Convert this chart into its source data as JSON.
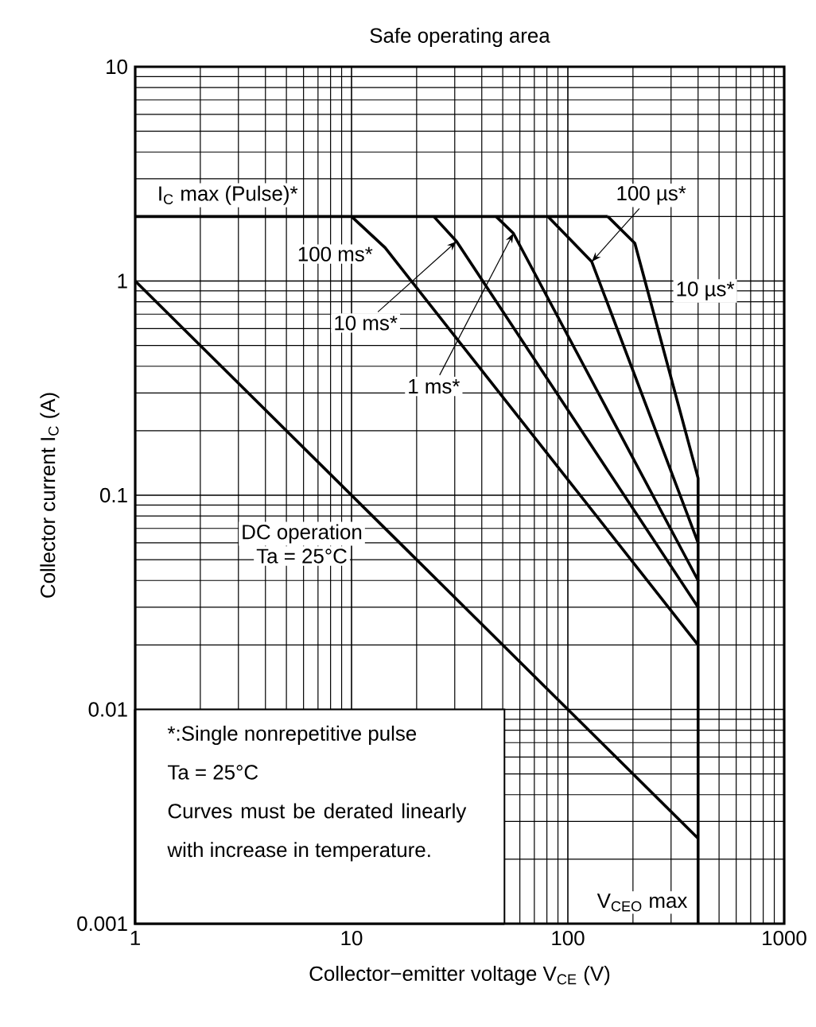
{
  "chart_data": {
    "type": "line",
    "title": "Safe operating area",
    "xlabel": "Collector−emitter voltage   V$_{CE}$   (V)",
    "ylabel": "Collector current   I$_{C}$   (A)",
    "log": "xy",
    "grid": true,
    "xlim": [
      1,
      1000
    ],
    "ylim": [
      0.001,
      10
    ],
    "xticks": [
      1,
      10,
      100,
      1000
    ],
    "yticks": [
      0.001,
      0.01,
      0.1,
      1,
      10
    ],
    "series": [
      {
        "name": "I$_{C}$ max (Pulse)*",
        "color": "#000000",
        "x": [
          1,
          153
        ],
        "values": [
          2,
          2
        ]
      },
      {
        "name": "100 ms*",
        "color": "#000000",
        "x": [
          10,
          14.3,
          400
        ],
        "values": [
          2,
          1.43,
          0.02
        ]
      },
      {
        "name": "10 ms*",
        "color": "#000000",
        "x": [
          24,
          30.6,
          400
        ],
        "values": [
          2,
          1.53,
          0.03
        ]
      },
      {
        "name": "1 ms*",
        "color": "#000000",
        "x": [
          46.6,
          56,
          400
        ],
        "values": [
          2,
          1.67,
          0.04
        ]
      },
      {
        "name": "100 µs*",
        "color": "#000000",
        "x": [
          81,
          129,
          400
        ],
        "values": [
          2,
          1.23,
          0.06
        ]
      },
      {
        "name": "10 µs*",
        "color": "#000000",
        "x": [
          153,
          204,
          400,
          400
        ],
        "values": [
          2,
          1.5,
          0.12,
          0.001
        ]
      },
      {
        "name": "DC operation",
        "color": "#000000",
        "x": [
          1,
          400
        ],
        "values": [
          1,
          0.0025
        ]
      }
    ],
    "annotations": [
      {
        "text": "V$_{CEO}$ max",
        "x": 400,
        "y": 0.001
      },
      "Ta = 25°C",
      "*:Single nonrepetitive pulse",
      "Ta = 25°C",
      "Curves must be derated linearly with increase in temperature."
    ]
  }
}
